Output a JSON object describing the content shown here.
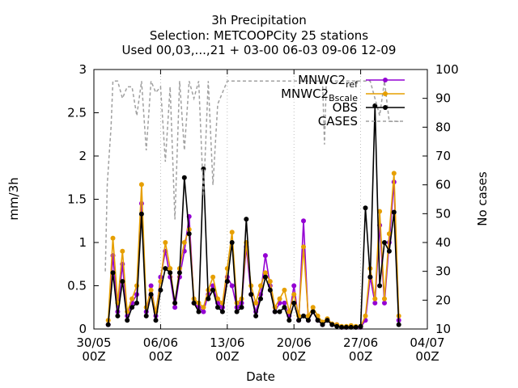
{
  "chart_data": {
    "type": "line",
    "title_lines": [
      "3h Precipitation",
      "Selection: METCOOPCity     25 stations",
      "Used 00,03,...,21 + 03-00 06-03 09-06 12-09"
    ],
    "xlabel": "Date",
    "ylabel": "mm/3h",
    "y2label": "No cases",
    "xlim": [
      0,
      35
    ],
    "ylim": [
      0,
      3
    ],
    "y2lim": [
      10,
      100
    ],
    "x_ticks": [
      {
        "x": 0,
        "l1": "30/05",
        "l2": "00Z"
      },
      {
        "x": 7,
        "l1": "06/06",
        "l2": "00Z"
      },
      {
        "x": 14,
        "l1": "13/06",
        "l2": "00Z"
      },
      {
        "x": 21,
        "l1": "20/06",
        "l2": "00Z"
      },
      {
        "x": 28,
        "l1": "27/06",
        "l2": "00Z"
      },
      {
        "x": 35,
        "l1": "04/07",
        "l2": "00Z"
      }
    ],
    "y_ticks": [
      {
        "v": 0,
        "label": "0"
      },
      {
        "v": 0.5,
        "label": "0.5"
      },
      {
        "v": 1,
        "label": "1"
      },
      {
        "v": 1.5,
        "label": "1.5"
      },
      {
        "v": 2,
        "label": "2"
      },
      {
        "v": 2.5,
        "label": "2.5"
      },
      {
        "v": 3,
        "label": "3"
      }
    ],
    "y2_ticks": [
      {
        "v": 10,
        "label": "10"
      },
      {
        "v": 20,
        "label": "20"
      },
      {
        "v": 30,
        "label": "30"
      },
      {
        "v": 40,
        "label": "40"
      },
      {
        "v": 50,
        "label": "50"
      },
      {
        "v": 60,
        "label": "60"
      },
      {
        "v": 70,
        "label": "70"
      },
      {
        "v": 80,
        "label": "80"
      },
      {
        "v": 90,
        "label": "90"
      },
      {
        "v": 100,
        "label": "100"
      }
    ],
    "grid": true,
    "legend_position": "top-right",
    "series": [
      {
        "name_main": "MNWC2",
        "name_sub": "ref",
        "color": "#9400d3",
        "axis": "y1",
        "marker": "circle",
        "x": [
          1.5,
          2.0,
          2.5,
          3.0,
          3.5,
          4.0,
          4.5,
          5.0,
          5.5,
          6.0,
          6.5,
          7.0,
          7.5,
          8.0,
          8.5,
          9.0,
          9.5,
          10.0,
          10.5,
          11.0,
          11.5,
          12.0,
          12.5,
          13.0,
          13.5,
          14.0,
          14.5,
          15.0,
          15.5,
          16.0,
          16.5,
          17.0,
          17.5,
          18.0,
          18.5,
          19.0,
          19.5,
          20.0,
          20.5,
          21.0,
          21.5,
          22.0,
          22.5,
          23.0,
          23.5,
          24.0,
          24.5,
          25.0,
          25.5,
          26.0,
          26.5,
          27.0,
          27.5,
          28.0,
          28.5,
          29.0,
          29.5,
          30.0,
          30.5,
          31.0,
          31.5,
          32.0
        ],
        "y": [
          0.05,
          0.85,
          0.2,
          0.75,
          0.15,
          0.3,
          0.4,
          1.45,
          0.2,
          0.5,
          0.15,
          0.6,
          0.9,
          0.6,
          0.25,
          0.6,
          0.9,
          1.3,
          0.3,
          0.25,
          0.2,
          0.4,
          0.5,
          0.3,
          0.25,
          0.6,
          0.5,
          0.25,
          0.3,
          0.95,
          0.4,
          0.2,
          0.4,
          0.85,
          0.5,
          0.2,
          0.3,
          0.3,
          0.15,
          0.5,
          0.1,
          1.25,
          0.1,
          0.2,
          0.1,
          0.05,
          0.1,
          0.05,
          0.05,
          0.02,
          0.02,
          0.03,
          0.02,
          0.02,
          0.1,
          0.6,
          0.3,
          1.2,
          0.3,
          1.0,
          1.7,
          0.1
        ]
      },
      {
        "name_main": "MNWC2",
        "name_sub": "Bscale",
        "color": "#e69f00",
        "axis": "y1",
        "marker": "circle",
        "x": [
          1.5,
          2.0,
          2.5,
          3.0,
          3.5,
          4.0,
          4.5,
          5.0,
          5.5,
          6.0,
          6.5,
          7.0,
          7.5,
          8.0,
          8.5,
          9.0,
          9.5,
          10.0,
          10.5,
          11.0,
          11.5,
          12.0,
          12.5,
          13.0,
          13.5,
          14.0,
          14.5,
          15.0,
          15.5,
          16.0,
          16.5,
          17.0,
          17.5,
          18.0,
          18.5,
          19.0,
          19.5,
          20.0,
          20.5,
          21.0,
          21.5,
          22.0,
          22.5,
          23.0,
          23.5,
          24.0,
          24.5,
          25.0,
          25.5,
          26.0,
          26.5,
          27.0,
          27.5,
          28.0,
          28.5,
          29.0,
          29.5,
          30.0,
          30.5,
          31.0,
          31.5,
          32.0
        ],
        "y": [
          0.1,
          1.05,
          0.3,
          0.9,
          0.2,
          0.35,
          0.5,
          1.67,
          0.25,
          0.45,
          0.2,
          0.55,
          1.0,
          0.7,
          0.3,
          0.7,
          1.0,
          1.15,
          0.35,
          0.3,
          0.25,
          0.45,
          0.6,
          0.35,
          0.3,
          0.7,
          1.12,
          0.3,
          0.35,
          1.0,
          0.5,
          0.3,
          0.5,
          0.65,
          0.55,
          0.25,
          0.35,
          0.45,
          0.2,
          0.4,
          0.15,
          0.95,
          0.15,
          0.25,
          0.15,
          0.08,
          0.12,
          0.06,
          0.05,
          0.03,
          0.03,
          0.04,
          0.03,
          0.03,
          0.15,
          0.7,
          0.35,
          1.36,
          0.35,
          1.1,
          1.8,
          0.15
        ]
      },
      {
        "name_main": "OBS",
        "name_sub": "",
        "color": "#000000",
        "axis": "y1",
        "marker": "circle",
        "x": [
          1.5,
          2.0,
          2.5,
          3.0,
          3.5,
          4.0,
          4.5,
          5.0,
          5.5,
          6.0,
          6.5,
          7.0,
          7.5,
          8.0,
          8.5,
          9.0,
          9.5,
          10.0,
          10.5,
          11.0,
          11.5,
          12.0,
          12.5,
          13.0,
          13.5,
          14.0,
          14.5,
          15.0,
          15.5,
          16.0,
          16.5,
          17.0,
          17.5,
          18.0,
          18.5,
          19.0,
          19.5,
          20.0,
          20.5,
          21.0,
          21.5,
          22.0,
          22.5,
          23.0,
          23.5,
          24.0,
          24.5,
          25.0,
          25.5,
          26.0,
          26.5,
          27.0,
          27.5,
          28.0,
          28.5,
          29.0,
          29.5,
          30.0,
          30.5,
          31.0,
          31.5,
          32.0
        ],
        "y": [
          0.05,
          0.65,
          0.15,
          0.55,
          0.1,
          0.25,
          0.3,
          1.33,
          0.15,
          0.4,
          0.1,
          0.45,
          0.7,
          0.65,
          0.3,
          0.65,
          1.75,
          1.1,
          0.3,
          0.2,
          1.85,
          0.35,
          0.45,
          0.25,
          0.2,
          0.55,
          1.0,
          0.2,
          0.25,
          1.27,
          0.4,
          0.15,
          0.35,
          0.6,
          0.45,
          0.2,
          0.2,
          0.25,
          0.1,
          0.3,
          0.1,
          0.15,
          0.1,
          0.2,
          0.1,
          0.05,
          0.1,
          0.05,
          0.03,
          0.02,
          0.02,
          0.02,
          0.02,
          0.03,
          1.4,
          0.6,
          2.58,
          0.5,
          1.0,
          0.9,
          1.35,
          0.05
        ]
      },
      {
        "name_main": "CASES",
        "name_sub": "",
        "color": "#a0a0a0",
        "axis": "y2",
        "marker": "none",
        "dash": true,
        "x": [
          1.2,
          1.4,
          1.6,
          1.8,
          2.0,
          2.5,
          3.0,
          3.5,
          4.0,
          4.5,
          5.0,
          5.5,
          6.0,
          6.5,
          7.0,
          7.5,
          8.0,
          8.5,
          9.0,
          9.5,
          10.0,
          10.5,
          11.0,
          11.5,
          12.0,
          12.5,
          13.0,
          14.0,
          15.0,
          16.0,
          17.0,
          18.0,
          19.0,
          20.0,
          21.0,
          22.0,
          23.0,
          24.0,
          24.2,
          24.4,
          25.0,
          26.0,
          27.0,
          28.0,
          29.0,
          30.0,
          30.5,
          31.0,
          31.5,
          32.0
        ],
        "y": [
          30,
          60,
          70,
          80,
          96,
          96,
          90,
          94,
          94,
          84,
          96,
          72,
          96,
          92,
          94,
          68,
          94,
          48,
          96,
          72,
          96,
          90,
          96,
          56,
          96,
          60,
          88,
          96,
          96,
          96,
          96,
          96,
          96,
          96,
          96,
          96,
          96,
          96,
          74,
          96,
          96,
          96,
          96,
          96,
          96,
          84,
          96,
          82,
          82,
          82
        ]
      }
    ]
  }
}
